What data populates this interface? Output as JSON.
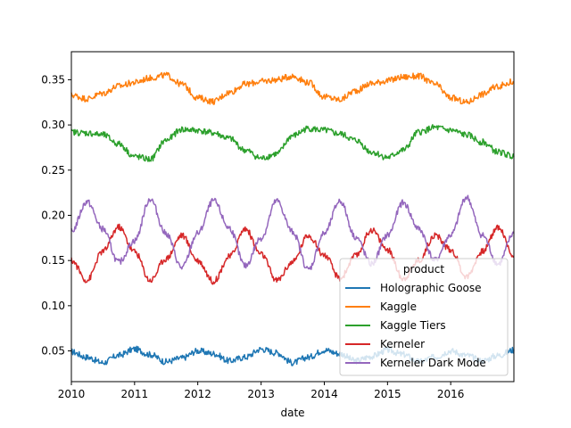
{
  "chart_data": {
    "type": "line",
    "xlabel": "date",
    "ylabel": "",
    "xlim": [
      "2010-01-01",
      "2016-12-31"
    ],
    "ylim": [
      0.016,
      0.381
    ],
    "x_ticks": [
      "2010",
      "2011",
      "2012",
      "2013",
      "2014",
      "2015",
      "2016"
    ],
    "y_ticks": [
      "0.05",
      "0.10",
      "0.15",
      "0.20",
      "0.25",
      "0.30",
      "0.35"
    ],
    "legend": {
      "title": "product",
      "placement": "lower right"
    },
    "series": [
      {
        "name": "Holographic Goose",
        "color": "#1f77b4",
        "x": [
          "2010-01-01",
          "2010-04-01",
          "2010-07-01",
          "2010-10-01",
          "2011-01-01",
          "2011-04-01",
          "2011-07-01",
          "2011-10-01",
          "2012-01-01",
          "2012-04-01",
          "2012-07-01",
          "2012-10-01",
          "2013-01-01",
          "2013-04-01",
          "2013-07-01",
          "2013-10-01",
          "2014-01-01",
          "2014-04-01",
          "2014-07-01",
          "2014-10-01",
          "2015-01-01",
          "2015-04-01",
          "2015-07-01",
          "2015-10-01",
          "2016-01-01",
          "2016-04-01",
          "2016-07-01",
          "2016-10-01",
          "2016-12-31"
        ],
        "values": [
          0.049,
          0.043,
          0.037,
          0.045,
          0.052,
          0.046,
          0.038,
          0.042,
          0.05,
          0.047,
          0.039,
          0.043,
          0.052,
          0.048,
          0.037,
          0.043,
          0.051,
          0.047,
          0.039,
          0.044,
          0.051,
          0.046,
          0.038,
          0.043,
          0.05,
          0.045,
          0.039,
          0.045,
          0.051
        ]
      },
      {
        "name": "Kaggle",
        "color": "#ff7f0e",
        "x": [
          "2010-01-01",
          "2010-04-01",
          "2010-07-01",
          "2010-10-01",
          "2011-01-01",
          "2011-04-01",
          "2011-07-01",
          "2011-10-01",
          "2012-01-01",
          "2012-04-01",
          "2012-07-01",
          "2012-10-01",
          "2013-01-01",
          "2013-04-01",
          "2013-07-01",
          "2013-10-01",
          "2014-01-01",
          "2014-04-01",
          "2014-07-01",
          "2014-10-01",
          "2015-01-01",
          "2015-04-01",
          "2015-07-01",
          "2015-10-01",
          "2016-01-01",
          "2016-04-01",
          "2016-07-01",
          "2016-10-01",
          "2016-12-31"
        ],
        "values": [
          0.333,
          0.329,
          0.335,
          0.343,
          0.347,
          0.352,
          0.355,
          0.345,
          0.33,
          0.326,
          0.336,
          0.345,
          0.348,
          0.35,
          0.354,
          0.347,
          0.331,
          0.328,
          0.338,
          0.346,
          0.349,
          0.353,
          0.354,
          0.345,
          0.33,
          0.325,
          0.334,
          0.343,
          0.348
        ]
      },
      {
        "name": "Kaggle Tiers",
        "color": "#2ca02c",
        "x": [
          "2010-01-01",
          "2010-04-01",
          "2010-07-01",
          "2010-10-01",
          "2011-01-01",
          "2011-04-01",
          "2011-07-01",
          "2011-10-01",
          "2012-01-01",
          "2012-04-01",
          "2012-07-01",
          "2012-10-01",
          "2013-01-01",
          "2013-04-01",
          "2013-07-01",
          "2013-10-01",
          "2014-01-01",
          "2014-04-01",
          "2014-07-01",
          "2014-10-01",
          "2015-01-01",
          "2015-04-01",
          "2015-07-01",
          "2015-10-01",
          "2016-01-01",
          "2016-04-01",
          "2016-07-01",
          "2016-10-01",
          "2016-12-31"
        ],
        "values": [
          0.292,
          0.291,
          0.289,
          0.279,
          0.265,
          0.262,
          0.283,
          0.295,
          0.294,
          0.291,
          0.285,
          0.272,
          0.263,
          0.268,
          0.288,
          0.296,
          0.294,
          0.29,
          0.283,
          0.27,
          0.264,
          0.272,
          0.292,
          0.297,
          0.294,
          0.289,
          0.281,
          0.27,
          0.265
        ]
      },
      {
        "name": "Kerneler",
        "color": "#d62728",
        "x": [
          "2010-01-01",
          "2010-04-01",
          "2010-07-01",
          "2010-10-01",
          "2011-01-01",
          "2011-04-01",
          "2011-07-01",
          "2011-10-01",
          "2012-01-01",
          "2012-04-01",
          "2012-07-01",
          "2012-10-01",
          "2013-01-01",
          "2013-04-01",
          "2013-07-01",
          "2013-10-01",
          "2014-01-01",
          "2014-04-01",
          "2014-07-01",
          "2014-10-01",
          "2015-01-01",
          "2015-04-01",
          "2015-07-01",
          "2015-10-01",
          "2016-01-01",
          "2016-04-01",
          "2016-07-01",
          "2016-10-01",
          "2016-12-31"
        ],
        "values": [
          0.15,
          0.128,
          0.16,
          0.187,
          0.16,
          0.128,
          0.152,
          0.178,
          0.15,
          0.127,
          0.154,
          0.185,
          0.157,
          0.128,
          0.148,
          0.178,
          0.156,
          0.13,
          0.155,
          0.184,
          0.162,
          0.13,
          0.15,
          0.178,
          0.162,
          0.132,
          0.16,
          0.187,
          0.155
        ]
      },
      {
        "name": "Kerneler Dark Mode",
        "color": "#9467bd",
        "x": [
          "2010-01-01",
          "2010-04-01",
          "2010-07-01",
          "2010-10-01",
          "2011-01-01",
          "2011-04-01",
          "2011-07-01",
          "2011-10-01",
          "2012-01-01",
          "2012-04-01",
          "2012-07-01",
          "2012-10-01",
          "2013-01-01",
          "2013-04-01",
          "2013-07-01",
          "2013-10-01",
          "2014-01-01",
          "2014-04-01",
          "2014-07-01",
          "2014-10-01",
          "2015-01-01",
          "2015-04-01",
          "2015-07-01",
          "2015-10-01",
          "2016-01-01",
          "2016-04-01",
          "2016-07-01",
          "2016-10-01",
          "2016-12-31"
        ],
        "values": [
          0.182,
          0.215,
          0.185,
          0.148,
          0.172,
          0.218,
          0.18,
          0.142,
          0.18,
          0.216,
          0.186,
          0.144,
          0.175,
          0.216,
          0.182,
          0.14,
          0.18,
          0.216,
          0.176,
          0.146,
          0.178,
          0.214,
          0.185,
          0.15,
          0.178,
          0.22,
          0.178,
          0.146,
          0.18
        ]
      }
    ]
  }
}
